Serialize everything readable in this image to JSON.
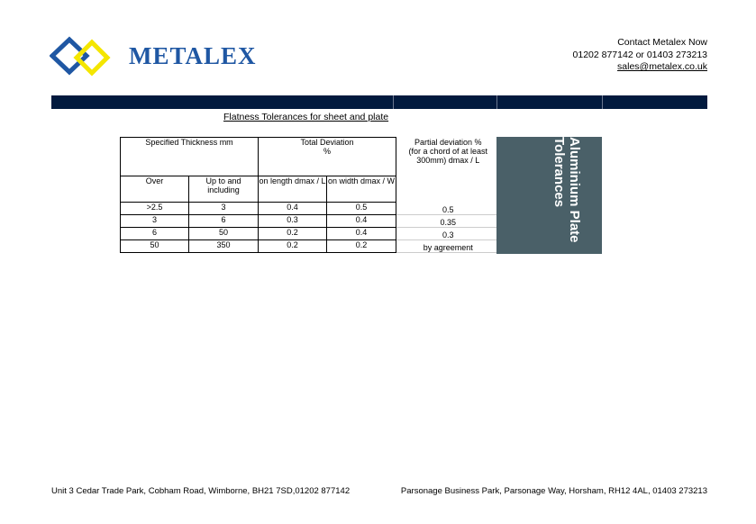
{
  "header": {
    "brand": "METALEX",
    "contact_title": "Contact Metalex Now",
    "phones": "01202 877142 or 01403 273213",
    "email": "sales@metalex.co.uk",
    "logo_colors": {
      "blue": "#1f57a3",
      "yellow": "#f4e600"
    }
  },
  "bar_color": "#011a3e",
  "title": "Flatness Tolerances for sheet and plate",
  "table": {
    "h_thickness": "Specified Thickness        mm",
    "h_total": "Total Deviation\n%",
    "h_partial": "Partial deviation  %\n(for a chord of at least 300mm)  dmax / L",
    "h_over": "Over",
    "h_upto": "Up to and including",
    "h_length": "on length dmax / L",
    "h_width": "on width dmax / W",
    "rows": [
      {
        "over": ">2.5",
        "upto": "3",
        "length": "0.4",
        "width": "0.5",
        "partial": "0.5"
      },
      {
        "over": "3",
        "upto": "6",
        "length": "0.3",
        "width": "0.4",
        "partial": "0.35"
      },
      {
        "over": "6",
        "upto": "50",
        "length": "0.2",
        "width": "0.4",
        "partial": "0.3"
      },
      {
        "over": "50",
        "upto": "350",
        "length": "0.2",
        "width": "0.2",
        "partial": "by agreement"
      }
    ]
  },
  "side_label": "Aluminium Plate Tolerances",
  "side_color": "#4a6068",
  "footer": {
    "left": "Unit 3 Cedar Trade Park, Cobham Road, Wimborne, BH21 7SD,01202 877142",
    "right": "Parsonage Business Park, Parsonage Way, Horsham, RH12 4AL, 01403 273213"
  }
}
